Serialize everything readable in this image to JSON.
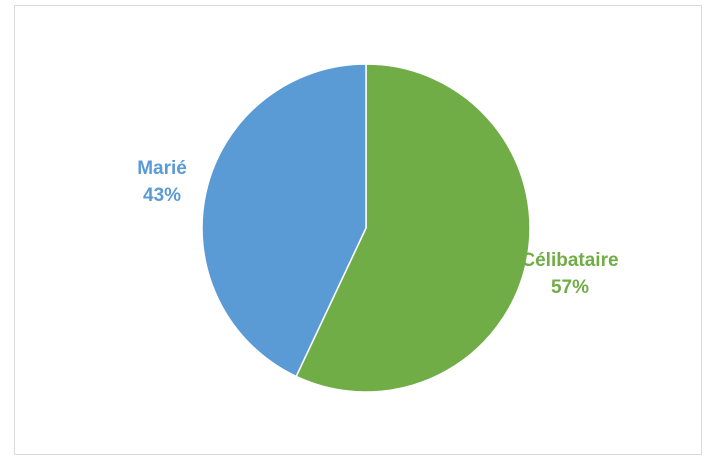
{
  "chart_data": {
    "type": "pie",
    "title": "",
    "categories": [
      "Célibataire",
      "Marié"
    ],
    "values": [
      57,
      43
    ],
    "value_labels": [
      "57%",
      "43%"
    ],
    "colors": [
      "#70ad47",
      "#5b9bd5"
    ],
    "legend": "none",
    "start_angle": "12 o'clock",
    "direction": "clockwise"
  }
}
